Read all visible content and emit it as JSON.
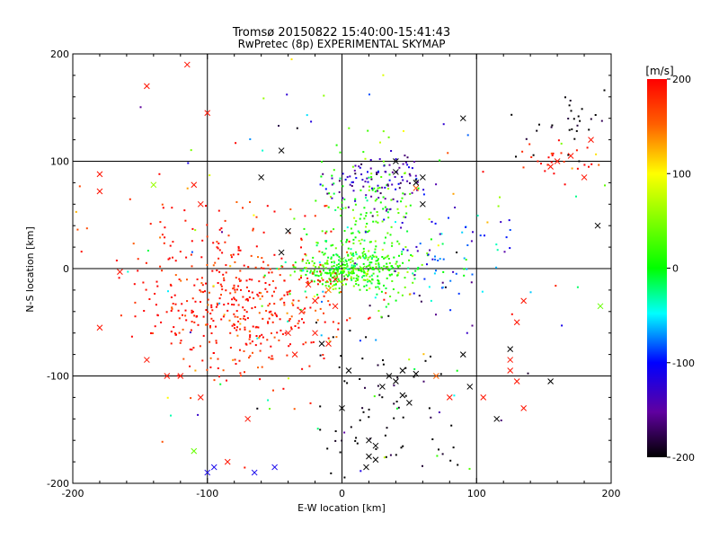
{
  "chart_data": {
    "type": "scatter",
    "title": "Tromsø 20150822 15:40:00-15:41:43",
    "subtitle": "RwPretec (8p) EXPERIMENTAL SKYMAP",
    "xlabel": "E-W location [km]",
    "ylabel": "N-S location [km]",
    "xlim": [
      -200,
      200
    ],
    "ylim": [
      -200,
      200
    ],
    "xticks": [
      "-200",
      "-100",
      "0",
      "100",
      "200"
    ],
    "yticks": [
      "-200",
      "-100",
      "0",
      "100",
      "200"
    ],
    "grid": true,
    "colorbar": {
      "unit": "[m/s]",
      "range": [
        -200,
        200
      ],
      "ticks": [
        "200",
        "100",
        "0",
        "-100",
        "-200"
      ],
      "colormap": "black-purple-blue-cyan-green-yellow-red"
    },
    "markers": [
      "dot",
      "x"
    ],
    "cluster_regions": [
      {
        "desc": "green cluster",
        "cx": 10,
        "cy": 0,
        "sx": 25,
        "sy": 12,
        "vel": 10,
        "n": 300
      },
      {
        "desc": "cyan core",
        "cx": 0,
        "cy": -3,
        "sx": 18,
        "sy": 8,
        "vel": 40,
        "n": 80
      },
      {
        "desc": "green plume north",
        "cx": 20,
        "cy": 50,
        "sx": 18,
        "sy": 35,
        "vel": 20,
        "n": 150
      },
      {
        "desc": "red mass southwest",
        "cx": -70,
        "cy": -40,
        "sx": 35,
        "sy": 30,
        "vel": 190,
        "n": 380
      },
      {
        "desc": "red scatter west",
        "cx": -90,
        "cy": 10,
        "sx": 40,
        "sy": 35,
        "vel": 190,
        "n": 100
      },
      {
        "desc": "blue-purple north",
        "cx": 30,
        "cy": 80,
        "sx": 18,
        "sy": 12,
        "vel": -140,
        "n": 100
      },
      {
        "desc": "blue east",
        "cx": 80,
        "cy": 10,
        "sx": 25,
        "sy": 20,
        "vel": -100,
        "n": 60
      },
      {
        "desc": "black southeast",
        "cx": 30,
        "cy": -130,
        "sx": 30,
        "sy": 45,
        "vel": -210,
        "n": 80
      },
      {
        "desc": "red northeast",
        "cx": 160,
        "cy": 100,
        "sx": 15,
        "sy": 10,
        "vel": 190,
        "n": 25
      },
      {
        "desc": "black northeast",
        "cx": 170,
        "cy": 130,
        "sx": 20,
        "sy": 15,
        "vel": -210,
        "n": 30
      },
      {
        "desc": "sparse background",
        "cx": 0,
        "cy": 0,
        "sx": 130,
        "sy": 110,
        "vel": 0,
        "n": 160
      }
    ],
    "cross_points": [
      [
        -115,
        190,
        190
      ],
      [
        -145,
        170,
        190
      ],
      [
        -100,
        145,
        190
      ],
      [
        -180,
        88,
        190
      ],
      [
        -180,
        72,
        190
      ],
      [
        -140,
        78,
        60
      ],
      [
        -110,
        78,
        190
      ],
      [
        -105,
        60,
        190
      ],
      [
        -165,
        -3,
        190
      ],
      [
        -180,
        -55,
        190
      ],
      [
        -145,
        -85,
        190
      ],
      [
        -130,
        -100,
        190
      ],
      [
        -120,
        -100,
        190
      ],
      [
        -105,
        -120,
        190
      ],
      [
        -85,
        -180,
        190
      ],
      [
        -70,
        -140,
        190
      ],
      [
        -100,
        -190,
        -110
      ],
      [
        -95,
        -185,
        -110
      ],
      [
        -65,
        -190,
        -110
      ],
      [
        -50,
        -185,
        -110
      ],
      [
        -110,
        -170,
        40
      ],
      [
        -40,
        35,
        -210
      ],
      [
        -45,
        110,
        -210
      ],
      [
        -60,
        85,
        -210
      ],
      [
        -45,
        15,
        -210
      ],
      [
        -40,
        -60,
        190
      ],
      [
        -35,
        -80,
        190
      ],
      [
        -30,
        -40,
        190
      ],
      [
        -20,
        -60,
        190
      ],
      [
        -15,
        -70,
        -210
      ],
      [
        -10,
        -70,
        190
      ],
      [
        -5,
        -35,
        190
      ],
      [
        5,
        -95,
        -210
      ],
      [
        0,
        -130,
        -210
      ],
      [
        20,
        -160,
        -210
      ],
      [
        25,
        -165,
        -210
      ],
      [
        20,
        -175,
        -210
      ],
      [
        25,
        -178,
        -210
      ],
      [
        18,
        -185,
        -210
      ],
      [
        30,
        -110,
        -210
      ],
      [
        35,
        -100,
        -210
      ],
      [
        40,
        -105,
        -210
      ],
      [
        45,
        -118,
        -210
      ],
      [
        50,
        -125,
        -210
      ],
      [
        45,
        -95,
        -210
      ],
      [
        55,
        -98,
        -210
      ],
      [
        70,
        -100,
        150
      ],
      [
        90,
        -80,
        -210
      ],
      [
        95,
        -110,
        -210
      ],
      [
        80,
        -120,
        190
      ],
      [
        105,
        -120,
        190
      ],
      [
        125,
        -75,
        -210
      ],
      [
        115,
        -140,
        -210
      ],
      [
        130,
        -105,
        190
      ],
      [
        130,
        -50,
        190
      ],
      [
        125,
        -85,
        190
      ],
      [
        135,
        -30,
        190
      ],
      [
        155,
        -105,
        -210
      ],
      [
        135,
        -130,
        190
      ],
      [
        125,
        -95,
        190
      ],
      [
        155,
        95,
        190
      ],
      [
        160,
        100,
        190
      ],
      [
        170,
        105,
        190
      ],
      [
        185,
        120,
        190
      ],
      [
        180,
        85,
        190
      ],
      [
        190,
        40,
        -210
      ],
      [
        192,
        -35,
        40
      ],
      [
        90,
        140,
        -210
      ],
      [
        40,
        90,
        -210
      ],
      [
        55,
        75,
        150
      ],
      [
        60,
        60,
        -210
      ],
      [
        55,
        80,
        -210
      ],
      [
        40,
        100,
        -210
      ],
      [
        60,
        85,
        -210
      ],
      [
        0,
        8,
        20
      ],
      [
        15,
        0,
        30
      ],
      [
        -10,
        -20,
        140
      ],
      [
        -20,
        -30,
        190
      ],
      [
        -25,
        -15,
        190
      ],
      [
        -5,
        -10,
        190
      ]
    ]
  }
}
